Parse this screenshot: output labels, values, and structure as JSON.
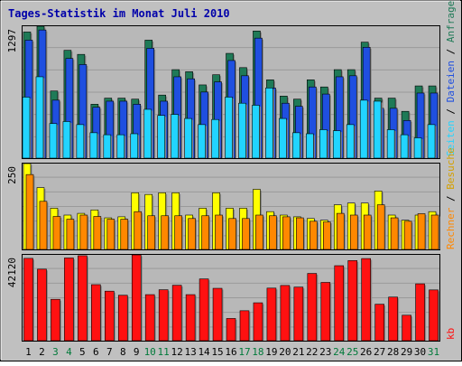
{
  "chart_data": [
    {
      "type": "bar",
      "title": "Tages-Statistik im Monat Juli 2010",
      "categories": [
        "1",
        "2",
        "3",
        "4",
        "5",
        "6",
        "7",
        "8",
        "9",
        "10",
        "11",
        "12",
        "13",
        "14",
        "15",
        "16",
        "17",
        "18",
        "19",
        "20",
        "21",
        "22",
        "23",
        "24",
        "25",
        "26",
        "27",
        "28",
        "29",
        "30",
        "31"
      ],
      "weekend_days": [
        3,
        4,
        10,
        11,
        17,
        18,
        24,
        25,
        31
      ],
      "ylabel_max": "1297",
      "ylim": [
        0,
        1297
      ],
      "grid": true,
      "series": [
        {
          "name": "Anfragen",
          "color": "#1f7a57",
          "values": [
            1240,
            1297,
            660,
            1060,
            1020,
            530,
            590,
            590,
            580,
            1160,
            620,
            870,
            850,
            720,
            820,
            1030,
            890,
            1250,
            770,
            610,
            580,
            770,
            700,
            870,
            870,
            1140,
            590,
            590,
            460,
            710,
            710
          ]
        },
        {
          "name": "Dateien",
          "color": "#1f4fe0",
          "values": [
            1160,
            1260,
            570,
            980,
            920,
            500,
            560,
            560,
            530,
            1080,
            560,
            800,
            780,
            650,
            750,
            960,
            810,
            1180,
            690,
            540,
            510,
            700,
            630,
            800,
            810,
            1090,
            490,
            490,
            370,
            640,
            640
          ]
        },
        {
          "name": "Seiten",
          "color": "#22d4ff",
          "values": [
            600,
            800,
            340,
            360,
            330,
            250,
            230,
            230,
            240,
            480,
            420,
            430,
            390,
            330,
            380,
            600,
            540,
            520,
            690,
            390,
            250,
            240,
            280,
            270,
            330,
            570,
            560,
            280,
            230,
            200,
            330
          ]
        }
      ]
    },
    {
      "type": "bar",
      "ylabel_max": "250",
      "ylim": [
        0,
        250
      ],
      "grid": true,
      "series": [
        {
          "name": "Besuche",
          "color": "#ffff00",
          "values": [
            250,
            180,
            120,
            100,
            105,
            115,
            92,
            95,
            165,
            160,
            165,
            165,
            100,
            120,
            165,
            120,
            120,
            175,
            110,
            100,
            95,
            90,
            85,
            130,
            135,
            135,
            170,
            100,
            85,
            100,
            110
          ]
        },
        {
          "name": "Rechner",
          "color": "#ff8800",
          "values": [
            218,
            140,
            96,
            88,
            100,
            96,
            88,
            88,
            110,
            98,
            98,
            98,
            90,
            98,
            100,
            90,
            90,
            100,
            98,
            95,
            92,
            82,
            80,
            105,
            100,
            100,
            130,
            92,
            82,
            104,
            100
          ]
        }
      ]
    },
    {
      "type": "bar",
      "ylabel_max": "42120",
      "ylim": [
        0,
        42120
      ],
      "grid": true,
      "series": [
        {
          "name": "kb",
          "color": "#ff1111",
          "values": [
            40400,
            35100,
            20300,
            40600,
            41700,
            27500,
            24300,
            22300,
            42100,
            22600,
            25000,
            27200,
            22600,
            30300,
            25700,
            10900,
            14700,
            18600,
            25800,
            27100,
            26300,
            33000,
            28600,
            36800,
            39300,
            40300,
            17900,
            21400,
            12500,
            27900,
            24900
          ]
        }
      ]
    }
  ]
}
